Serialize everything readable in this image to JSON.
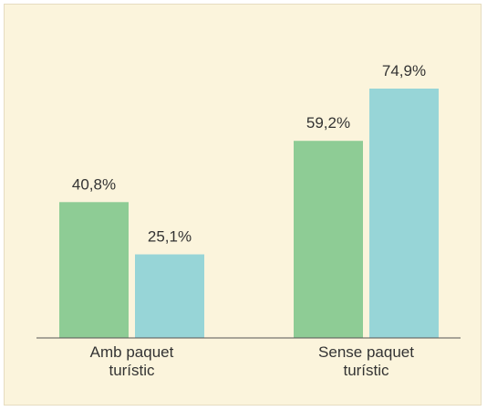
{
  "chart_data": {
    "type": "bar",
    "categories": [
      "Amb paquet turístic",
      "Sense paquet turístic"
    ],
    "series": [
      {
        "color": "#8ecc95",
        "values": [
          40.8,
          59.2
        ],
        "value_labels": [
          "40,8%",
          "59,2%"
        ]
      },
      {
        "color": "#97d5d7",
        "values": [
          25.1,
          74.9
        ],
        "value_labels": [
          "25,1%",
          "74,9%"
        ]
      }
    ]
  }
}
